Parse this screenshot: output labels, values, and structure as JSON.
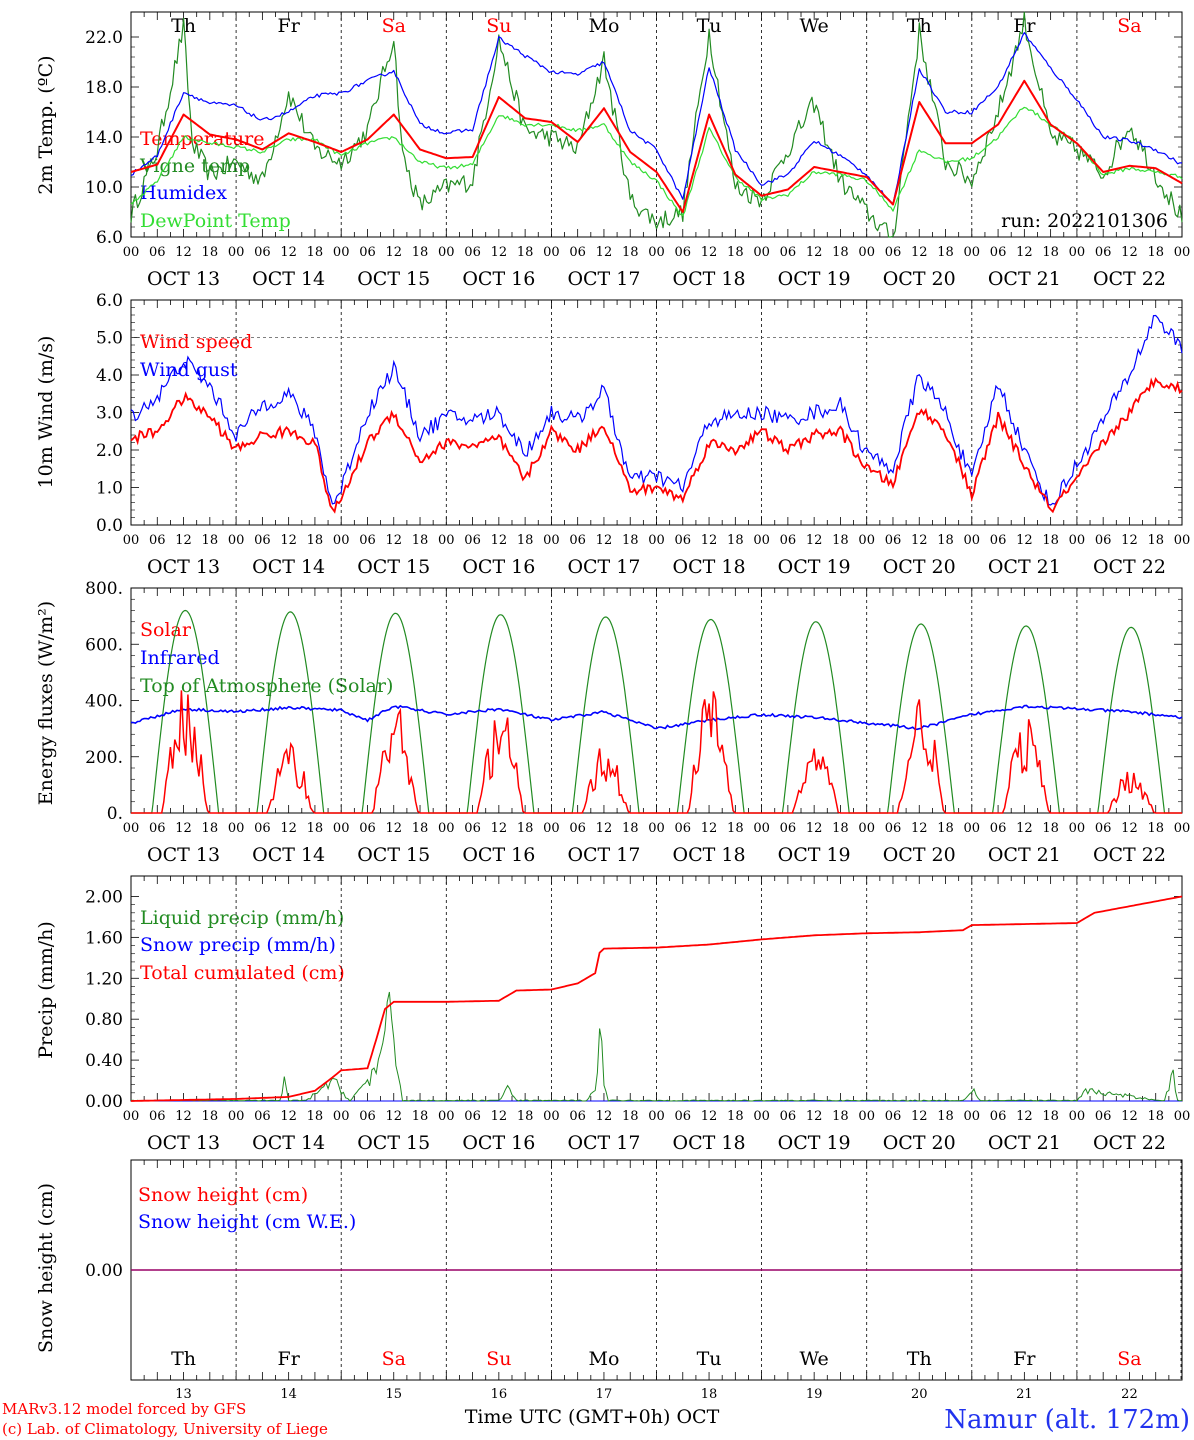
{
  "chart_data": [
    {
      "type": "line",
      "ylabel": "2m Temp. (ºC)",
      "ylim": [
        6,
        24
      ],
      "yticks": [
        "6.0",
        "10.0",
        "14.0",
        "18.0",
        "22.0"
      ],
      "grid": "dashed vertical at midnight",
      "day_names_top": [
        "Th",
        "Fr",
        "Sa",
        "Su",
        "Mo",
        "Tu",
        "We",
        "Th",
        "Fr",
        "Sa"
      ],
      "annotation": "run: 2022101306",
      "series": [
        {
          "name": "Temperature",
          "color": "#ff0000",
          "x": [
            0,
            6,
            12,
            18,
            24,
            30,
            36,
            42,
            48,
            54,
            60,
            66,
            72,
            78,
            84,
            90,
            96,
            102,
            108,
            114,
            120,
            126,
            132,
            138,
            144,
            150,
            156,
            162,
            168,
            174,
            180,
            186,
            192,
            198,
            204,
            210,
            216,
            222,
            228,
            234,
            240
          ],
          "values": [
            11.2,
            11.8,
            15.8,
            14.2,
            13.8,
            13.0,
            14.3,
            13.6,
            12.8,
            13.8,
            15.8,
            13.0,
            12.3,
            12.4,
            17.2,
            15.5,
            15.2,
            13.6,
            16.3,
            12.8,
            11.2,
            8.0,
            15.8,
            11.0,
            9.3,
            9.8,
            11.6,
            11.2,
            10.8,
            8.6,
            16.8,
            13.5,
            13.5,
            15.0,
            18.5,
            15.0,
            13.5,
            11.2,
            11.7,
            11.5,
            10.3
          ]
        },
        {
          "name": "Vigne temp",
          "color": "#228b22",
          "x": [
            0,
            6,
            12,
            14,
            18,
            24,
            30,
            36,
            42,
            48,
            54,
            60,
            62,
            66,
            72,
            78,
            84,
            90,
            96,
            102,
            108,
            114,
            120,
            126,
            132,
            138,
            144,
            150,
            156,
            162,
            168,
            174,
            180,
            186,
            192,
            198,
            204,
            210,
            216,
            222,
            228,
            234,
            240
          ],
          "values": [
            7.8,
            13.0,
            22.8,
            13.5,
            11.0,
            12.0,
            10.5,
            17.5,
            13.0,
            12.0,
            14.5,
            22.0,
            12.5,
            8.5,
            10.0,
            10.5,
            21.8,
            14.5,
            14.0,
            13.0,
            20.2,
            9.0,
            7.2,
            8.0,
            22.4,
            10.0,
            9.0,
            13.0,
            16.7,
            10.5,
            8.0,
            5.8,
            22.4,
            12.0,
            10.5,
            16.0,
            23.3,
            14.0,
            13.0,
            11.0,
            15.0,
            11.0,
            7.5
          ]
        },
        {
          "name": "Humidex",
          "color": "#0000ff",
          "x": [
            0,
            6,
            12,
            18,
            24,
            30,
            36,
            42,
            48,
            54,
            60,
            66,
            72,
            78,
            84,
            90,
            96,
            102,
            108,
            114,
            120,
            126,
            132,
            138,
            144,
            150,
            156,
            162,
            168,
            174,
            180,
            186,
            192,
            198,
            204,
            210,
            216,
            222,
            228,
            234,
            240
          ],
          "values": [
            11.0,
            12.5,
            17.6,
            16.7,
            16.5,
            15.3,
            16.0,
            17.3,
            17.5,
            18.5,
            19.3,
            15.0,
            14.3,
            14.6,
            21.9,
            20.5,
            19.2,
            19.0,
            20.0,
            14.5,
            13.0,
            9.0,
            19.6,
            13.0,
            10.2,
            11.0,
            13.7,
            12.5,
            11.0,
            8.5,
            19.5,
            16.0,
            16.0,
            18.0,
            22.3,
            19.5,
            17.0,
            14.0,
            13.7,
            13.0,
            11.8
          ]
        },
        {
          "name": "DewPoint Temp",
          "color": "#33dd33",
          "x": [
            0,
            6,
            12,
            18,
            24,
            30,
            36,
            42,
            48,
            54,
            60,
            66,
            72,
            78,
            84,
            90,
            96,
            102,
            108,
            114,
            120,
            126,
            132,
            138,
            144,
            150,
            156,
            162,
            168,
            174,
            180,
            186,
            192,
            198,
            204,
            210,
            216,
            222,
            228,
            234,
            240
          ],
          "values": [
            8.5,
            10.5,
            14.0,
            13.5,
            13.2,
            12.8,
            13.8,
            13.8,
            12.5,
            13.5,
            14.0,
            12.0,
            11.5,
            11.8,
            15.8,
            15.0,
            15.0,
            14.5,
            15.0,
            12.0,
            10.5,
            7.6,
            14.7,
            10.8,
            9.0,
            9.4,
            11.2,
            11.0,
            10.5,
            8.2,
            13.0,
            12.0,
            12.3,
            14.0,
            16.5,
            15.0,
            13.5,
            11.0,
            11.5,
            11.2,
            10.8
          ]
        }
      ]
    },
    {
      "type": "line",
      "ylabel": "10m Wind (m/s)",
      "ylim": [
        0,
        6
      ],
      "yticks": [
        "0.0",
        "1.0",
        "2.0",
        "3.0",
        "4.0",
        "5.0",
        "6.0"
      ],
      "reference_line": 5,
      "series": [
        {
          "name": "Wind speed",
          "color": "#ff0000",
          "x": [
            0,
            6,
            12,
            18,
            24,
            30,
            36,
            42,
            46,
            48,
            54,
            60,
            66,
            72,
            78,
            84,
            90,
            96,
            102,
            108,
            114,
            120,
            126,
            132,
            138,
            144,
            150,
            156,
            162,
            168,
            174,
            180,
            186,
            192,
            198,
            204,
            210,
            216,
            222,
            228,
            234,
            240
          ],
          "values": [
            2.3,
            2.5,
            3.4,
            2.9,
            2.0,
            2.4,
            2.5,
            2.2,
            0.3,
            0.7,
            2.2,
            3.0,
            1.7,
            2.2,
            2.1,
            2.3,
            1.2,
            2.5,
            2.0,
            2.7,
            0.9,
            1.0,
            0.7,
            2.2,
            2.0,
            2.5,
            2.0,
            2.4,
            2.5,
            1.5,
            1.1,
            3.1,
            2.5,
            0.8,
            2.9,
            1.6,
            0.4,
            1.2,
            2.2,
            3.0,
            3.9,
            3.6
          ]
        },
        {
          "name": "Wind gust",
          "color": "#0000ff",
          "x": [
            0,
            6,
            12,
            18,
            24,
            30,
            36,
            42,
            46,
            48,
            54,
            60,
            66,
            72,
            78,
            84,
            90,
            96,
            102,
            108,
            114,
            120,
            126,
            132,
            138,
            144,
            150,
            156,
            162,
            168,
            174,
            180,
            186,
            192,
            198,
            204,
            210,
            216,
            222,
            228,
            234,
            240
          ],
          "values": [
            2.9,
            3.4,
            4.4,
            3.7,
            2.4,
            3.2,
            3.5,
            2.5,
            0.5,
            1.0,
            3.0,
            4.2,
            2.4,
            2.9,
            2.8,
            3.0,
            1.9,
            3.0,
            2.8,
            3.6,
            1.2,
            1.3,
            1.0,
            2.8,
            2.9,
            3.0,
            2.8,
            3.0,
            3.2,
            1.9,
            1.5,
            4.0,
            3.0,
            1.2,
            3.8,
            2.0,
            0.5,
            1.6,
            2.8,
            4.0,
            5.6,
            4.7
          ]
        }
      ]
    },
    {
      "type": "line",
      "ylabel": "Energy fluxes (W/m²)",
      "ylim": [
        0,
        800
      ],
      "yticks": [
        "0.",
        "200.",
        "400.",
        "600.",
        "800."
      ],
      "series": [
        {
          "name": "Solar",
          "color": "#ff0000",
          "peaks_by_day": [
            470,
            260,
            400,
            390,
            260,
            465,
            260,
            445,
            350,
            170
          ]
        },
        {
          "name": "Infrared",
          "color": "#0000ff",
          "x": [
            0,
            12,
            24,
            36,
            48,
            54,
            60,
            72,
            84,
            96,
            108,
            120,
            132,
            144,
            156,
            168,
            180,
            192,
            204,
            216,
            228,
            240
          ],
          "values": [
            320,
            370,
            360,
            375,
            365,
            330,
            380,
            350,
            370,
            330,
            360,
            300,
            330,
            350,
            340,
            320,
            300,
            350,
            380,
            370,
            360,
            340
          ]
        },
        {
          "name": "Top of Atmosphere (Solar)",
          "color": "#228b22",
          "peaks_by_day": [
            720,
            715,
            710,
            705,
            697,
            688,
            680,
            672,
            665,
            660
          ]
        }
      ]
    },
    {
      "type": "line",
      "ylabel": "Precip (mm/h)",
      "ylim": [
        0,
        2.2
      ],
      "yticks": [
        "0.00",
        "0.40",
        "0.80",
        "1.20",
        "1.60",
        "2.00"
      ],
      "series": [
        {
          "name": "Liquid precip (mm/h)",
          "color": "#228b22",
          "x": [
            0,
            20,
            34,
            35,
            36,
            40,
            46,
            50,
            56,
            58,
            59,
            60,
            62,
            84,
            86,
            88,
            104,
            106,
            107,
            108,
            109,
            110,
            140,
            190,
            192,
            194,
            216,
            218,
            236,
            238,
            239,
            240
          ],
          "values": [
            0,
            0,
            0,
            0.18,
            0,
            0,
            0.2,
            0,
            0.3,
            0.5,
            0.9,
            0.6,
            0,
            0,
            0.13,
            0,
            0,
            0.15,
            0.62,
            0.25,
            0,
            0,
            0,
            0,
            0.13,
            0,
            0,
            0.1,
            0,
            0.28,
            0,
            0
          ]
        },
        {
          "name": "Snow precip (mm/h)",
          "color": "#0000ff",
          "x": [
            0,
            240
          ],
          "values": [
            0,
            0
          ]
        },
        {
          "name": "Total cumulated (cm)",
          "color": "#ff0000",
          "x": [
            0,
            12,
            24,
            36,
            42,
            46,
            48,
            54,
            56,
            58,
            60,
            72,
            84,
            88,
            96,
            102,
            106,
            107,
            108,
            120,
            132,
            144,
            156,
            168,
            180,
            190,
            192,
            216,
            218,
            220,
            240
          ],
          "values": [
            0,
            0.01,
            0.02,
            0.04,
            0.1,
            0.23,
            0.3,
            0.32,
            0.6,
            0.9,
            0.97,
            0.97,
            0.98,
            1.08,
            1.09,
            1.15,
            1.25,
            1.45,
            1.49,
            1.5,
            1.53,
            1.58,
            1.62,
            1.64,
            1.65,
            1.67,
            1.72,
            1.74,
            1.79,
            1.84,
            2.0
          ]
        }
      ]
    },
    {
      "type": "line",
      "ylabel": "Snow height (cm)",
      "yticks": [
        "0.00"
      ],
      "day_names_bottom": [
        "Th",
        "Fr",
        "Sa",
        "Su",
        "Mo",
        "Tu",
        "We",
        "Th",
        "Fr",
        "Sa"
      ],
      "day_numbers": [
        "13",
        "14",
        "15",
        "16",
        "17",
        "18",
        "19",
        "20",
        "21",
        "22"
      ],
      "series": [
        {
          "name": "Snow height (cm)",
          "color": "#ff0000",
          "x": [
            0,
            240
          ],
          "values": [
            0,
            0
          ]
        },
        {
          "name": "Snow height (cm W.E.)",
          "color": "#0000ff",
          "x": [
            0,
            240
          ],
          "values": [
            0,
            0
          ]
        }
      ]
    }
  ],
  "axis": {
    "hour_ticks": [
      "00",
      "06",
      "12",
      "18"
    ],
    "final_tick": "00",
    "date_labels": [
      "OCT 13",
      "OCT 14",
      "OCT 15",
      "OCT 16",
      "OCT 17",
      "OCT 18",
      "OCT 19",
      "OCT 20",
      "OCT 21",
      "OCT 22"
    ],
    "weekend_color": "#ff0000",
    "weekday_color": "#000000",
    "weekend_days": [
      2,
      3,
      9
    ]
  },
  "footer": {
    "credit_line1": "MARv3.12 model forced by GFS",
    "credit_line2": "(c) Lab. of Climatology, University of Liege",
    "xlabel": "Time UTC (GMT+0h) OCT",
    "station": "Namur (alt. 172m)"
  }
}
